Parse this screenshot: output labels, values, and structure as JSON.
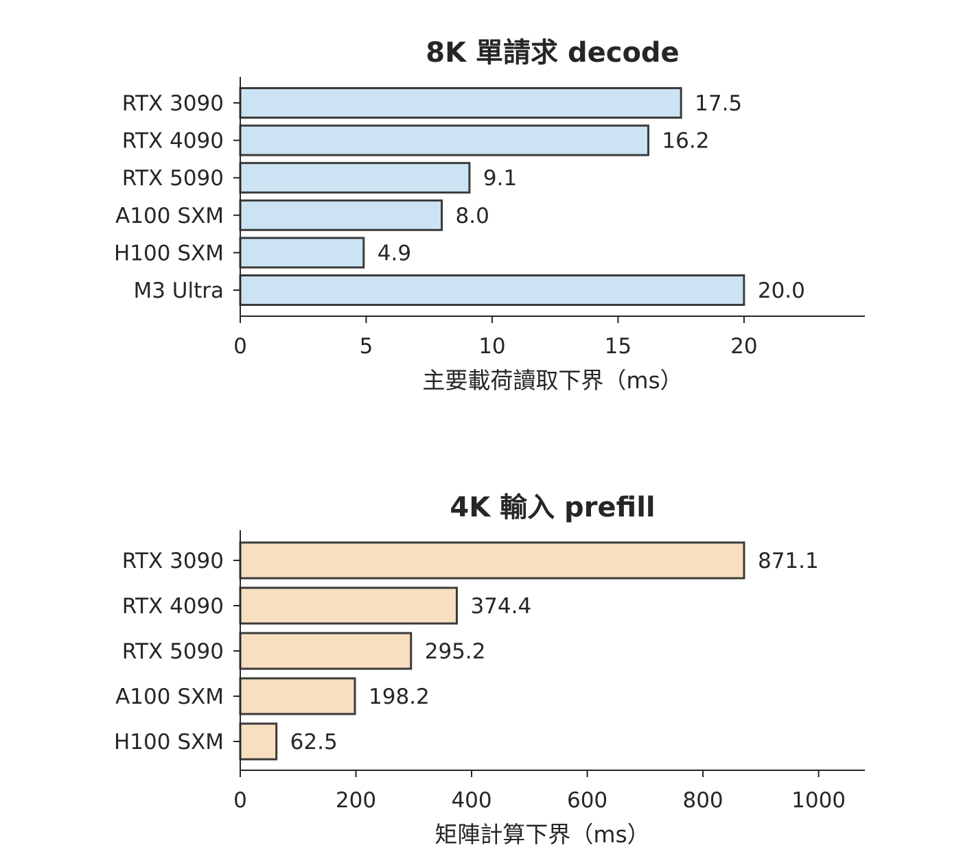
{
  "chart_data": [
    {
      "type": "bar",
      "orientation": "horizontal",
      "title": "8K 單請求 decode",
      "xlabel": "主要載荷讀取下界（ms）",
      "ylabel": "",
      "categories": [
        "RTX 3090",
        "RTX 4090",
        "RTX 5090",
        "A100 SXM",
        "H100 SXM",
        "M3 Ultra"
      ],
      "values": [
        17.5,
        16.2,
        9.1,
        8.0,
        4.9,
        20.0
      ],
      "value_labels": [
        "17.5",
        "16.2",
        "9.1",
        "8.0",
        "4.9",
        "20.0"
      ],
      "xlim": [
        0,
        24.8
      ],
      "xticks": [
        0,
        5,
        10,
        15,
        20
      ],
      "xtick_labels": [
        "0",
        "5",
        "10",
        "15",
        "20"
      ],
      "bar_color": "#cce3f3",
      "edge_color": "#3a3a3a",
      "grid": false
    },
    {
      "type": "bar",
      "orientation": "horizontal",
      "title": "4K 輸入 prefill",
      "xlabel": "矩陣計算下界（ms）",
      "ylabel": "",
      "categories": [
        "RTX 3090",
        "RTX 4090",
        "RTX 5090",
        "A100 SXM",
        "H100 SXM"
      ],
      "values": [
        871.1,
        374.4,
        295.2,
        198.2,
        62.5
      ],
      "value_labels": [
        "871.1",
        "374.4",
        "295.2",
        "198.2",
        "62.5"
      ],
      "xlim": [
        0,
        1080
      ],
      "xticks": [
        0,
        200,
        400,
        600,
        800,
        1000
      ],
      "xtick_labels": [
        "0",
        "200",
        "400",
        "600",
        "800",
        "1000"
      ],
      "bar_color": "#f8dfc0",
      "edge_color": "#3a3a3a",
      "grid": false
    }
  ]
}
